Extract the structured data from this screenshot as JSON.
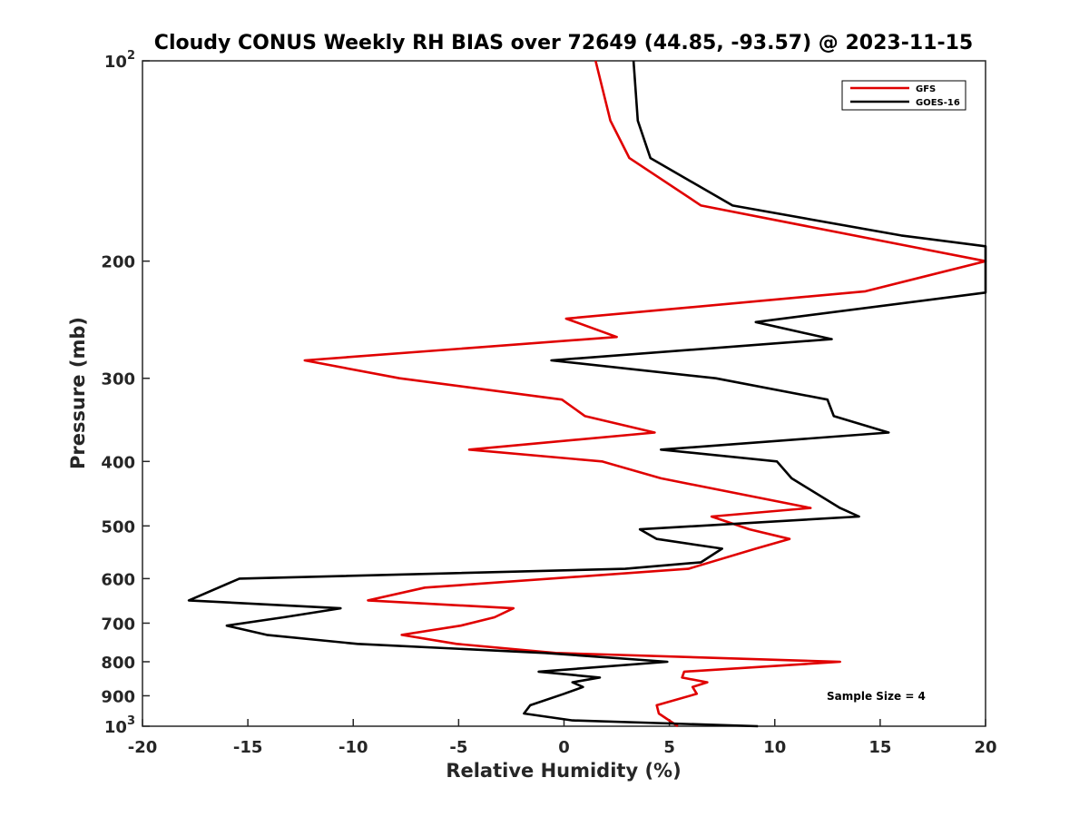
{
  "chart_data": {
    "type": "line",
    "title": "Cloudy CONUS Weekly RH BIAS over 72649 (44.85, -93.57) @ 2023-11-15",
    "xlabel": "Relative Humidity (%)",
    "ylabel": "Pressure (mb)",
    "xlim": [
      -20,
      20
    ],
    "ylim": [
      100,
      1000
    ],
    "y_scale": "log",
    "y_reversed": true,
    "grid": false,
    "legend_position": "top-right",
    "x_ticks": [
      {
        "value": -20,
        "label": "-20"
      },
      {
        "value": -15,
        "label": "-15"
      },
      {
        "value": -10,
        "label": "-10"
      },
      {
        "value": -5,
        "label": "-5"
      },
      {
        "value": 0,
        "label": "0"
      },
      {
        "value": 5,
        "label": "5"
      },
      {
        "value": 10,
        "label": "10"
      },
      {
        "value": 15,
        "label": "15"
      },
      {
        "value": 20,
        "label": "20"
      }
    ],
    "y_ticks": [
      {
        "value": 100,
        "base": "10",
        "exp": "2"
      },
      {
        "value": 200,
        "base": "200",
        "exp": ""
      },
      {
        "value": 300,
        "base": "300",
        "exp": ""
      },
      {
        "value": 400,
        "base": "400",
        "exp": ""
      },
      {
        "value": 500,
        "base": "500",
        "exp": ""
      },
      {
        "value": 600,
        "base": "600",
        "exp": ""
      },
      {
        "value": 700,
        "base": "700",
        "exp": ""
      },
      {
        "value": 800,
        "base": "800",
        "exp": ""
      },
      {
        "value": 900,
        "base": "900",
        "exp": ""
      },
      {
        "value": 1000,
        "base": "10",
        "exp": "3"
      }
    ],
    "series": [
      {
        "name": "GFS",
        "color": "#e00000",
        "points": [
          [
            1.5,
            100
          ],
          [
            2.2,
            123
          ],
          [
            3.1,
            140
          ],
          [
            6.5,
            165
          ],
          [
            20.0,
            200
          ],
          [
            14.3,
            222
          ],
          [
            0.1,
            244
          ],
          [
            2.5,
            260
          ],
          [
            -12.3,
            282
          ],
          [
            -7.8,
            300
          ],
          [
            -0.1,
            323
          ],
          [
            1.0,
            342
          ],
          [
            4.3,
            362
          ],
          [
            -4.5,
            384
          ],
          [
            1.8,
            400
          ],
          [
            4.6,
            424
          ],
          [
            11.7,
            470
          ],
          [
            7.0,
            484
          ],
          [
            8.8,
            506
          ],
          [
            10.7,
            523
          ],
          [
            9.1,
            541
          ],
          [
            5.9,
            580
          ],
          [
            -6.6,
            619
          ],
          [
            -9.3,
            647
          ],
          [
            -2.4,
            665
          ],
          [
            -3.3,
            686
          ],
          [
            -4.9,
            706
          ],
          [
            -7.7,
            729
          ],
          [
            -5.1,
            752
          ],
          [
            -0.4,
            776
          ],
          [
            13.1,
            800
          ],
          [
            5.7,
            828
          ],
          [
            5.6,
            845
          ],
          [
            6.8,
            859
          ],
          [
            6.1,
            873
          ],
          [
            6.3,
            894
          ],
          [
            4.4,
            930
          ],
          [
            4.5,
            957
          ],
          [
            5.4,
            1000
          ]
        ]
      },
      {
        "name": "GOES-16",
        "color": "#000000",
        "points": [
          [
            3.3,
            100
          ],
          [
            3.5,
            123
          ],
          [
            4.1,
            140
          ],
          [
            8.0,
            165
          ],
          [
            16.0,
            183
          ],
          [
            20.0,
            190
          ],
          [
            20.0,
            223
          ],
          [
            9.1,
            247
          ],
          [
            12.7,
            262
          ],
          [
            -0.6,
            282
          ],
          [
            7.2,
            300
          ],
          [
            12.5,
            323
          ],
          [
            12.8,
            342
          ],
          [
            15.4,
            362
          ],
          [
            4.6,
            384
          ],
          [
            10.1,
            400
          ],
          [
            10.8,
            424
          ],
          [
            13.1,
            470
          ],
          [
            14.0,
            484
          ],
          [
            3.6,
            506
          ],
          [
            4.4,
            523
          ],
          [
            7.5,
            541
          ],
          [
            6.5,
            567
          ],
          [
            2.9,
            580
          ],
          [
            -15.4,
            600
          ],
          [
            -17.8,
            647
          ],
          [
            -10.6,
            665
          ],
          [
            -13.3,
            686
          ],
          [
            -16.0,
            706
          ],
          [
            -14.1,
            729
          ],
          [
            -9.8,
            752
          ],
          [
            -0.9,
            776
          ],
          [
            4.9,
            800
          ],
          [
            -1.2,
            828
          ],
          [
            1.7,
            845
          ],
          [
            0.4,
            859
          ],
          [
            0.9,
            873
          ],
          [
            0.0,
            894
          ],
          [
            -1.6,
            930
          ],
          [
            -1.9,
            957
          ],
          [
            0.4,
            980
          ],
          [
            9.2,
            1000
          ]
        ]
      }
    ],
    "annotation": "Sample Size = 4"
  }
}
